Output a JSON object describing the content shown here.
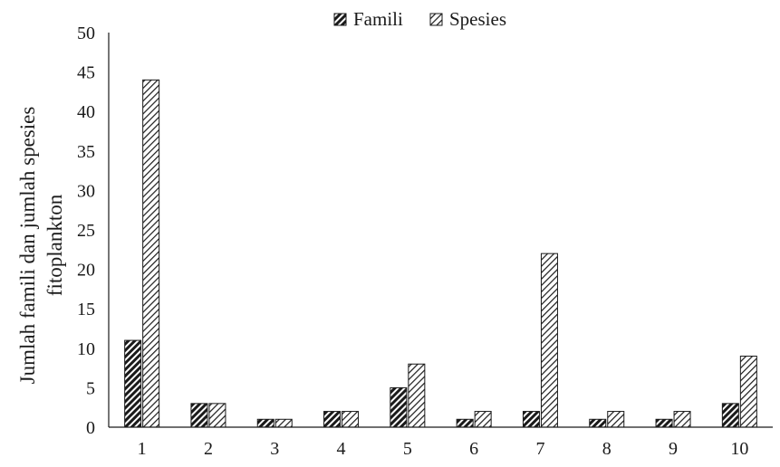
{
  "chart_data": {
    "type": "bar",
    "title": "",
    "xlabel": "",
    "ylabel": [
      "Jumlah famili dan jumlah spesies",
      "fitoplankton"
    ],
    "categories": [
      "1",
      "2",
      "3",
      "4",
      "5",
      "6",
      "7",
      "8",
      "9",
      "10"
    ],
    "series": [
      {
        "name": "Famili",
        "values": [
          11,
          3,
          1,
          2,
          5,
          1,
          2,
          1,
          1,
          3
        ],
        "pattern": "dense-diagonal-hatch"
      },
      {
        "name": "Spesies",
        "values": [
          44,
          3,
          1,
          2,
          8,
          2,
          22,
          2,
          2,
          9
        ],
        "pattern": "sparse-diagonal-hatch"
      }
    ],
    "ylim": [
      0,
      50
    ],
    "yticks": [
      "0",
      "5",
      "10",
      "15",
      "20",
      "25",
      "30",
      "35",
      "40",
      "45",
      "50"
    ],
    "grid": false,
    "legend_position": "top-center",
    "colors": {
      "ink": "#1a1a1a",
      "background": "#ffffff"
    }
  }
}
